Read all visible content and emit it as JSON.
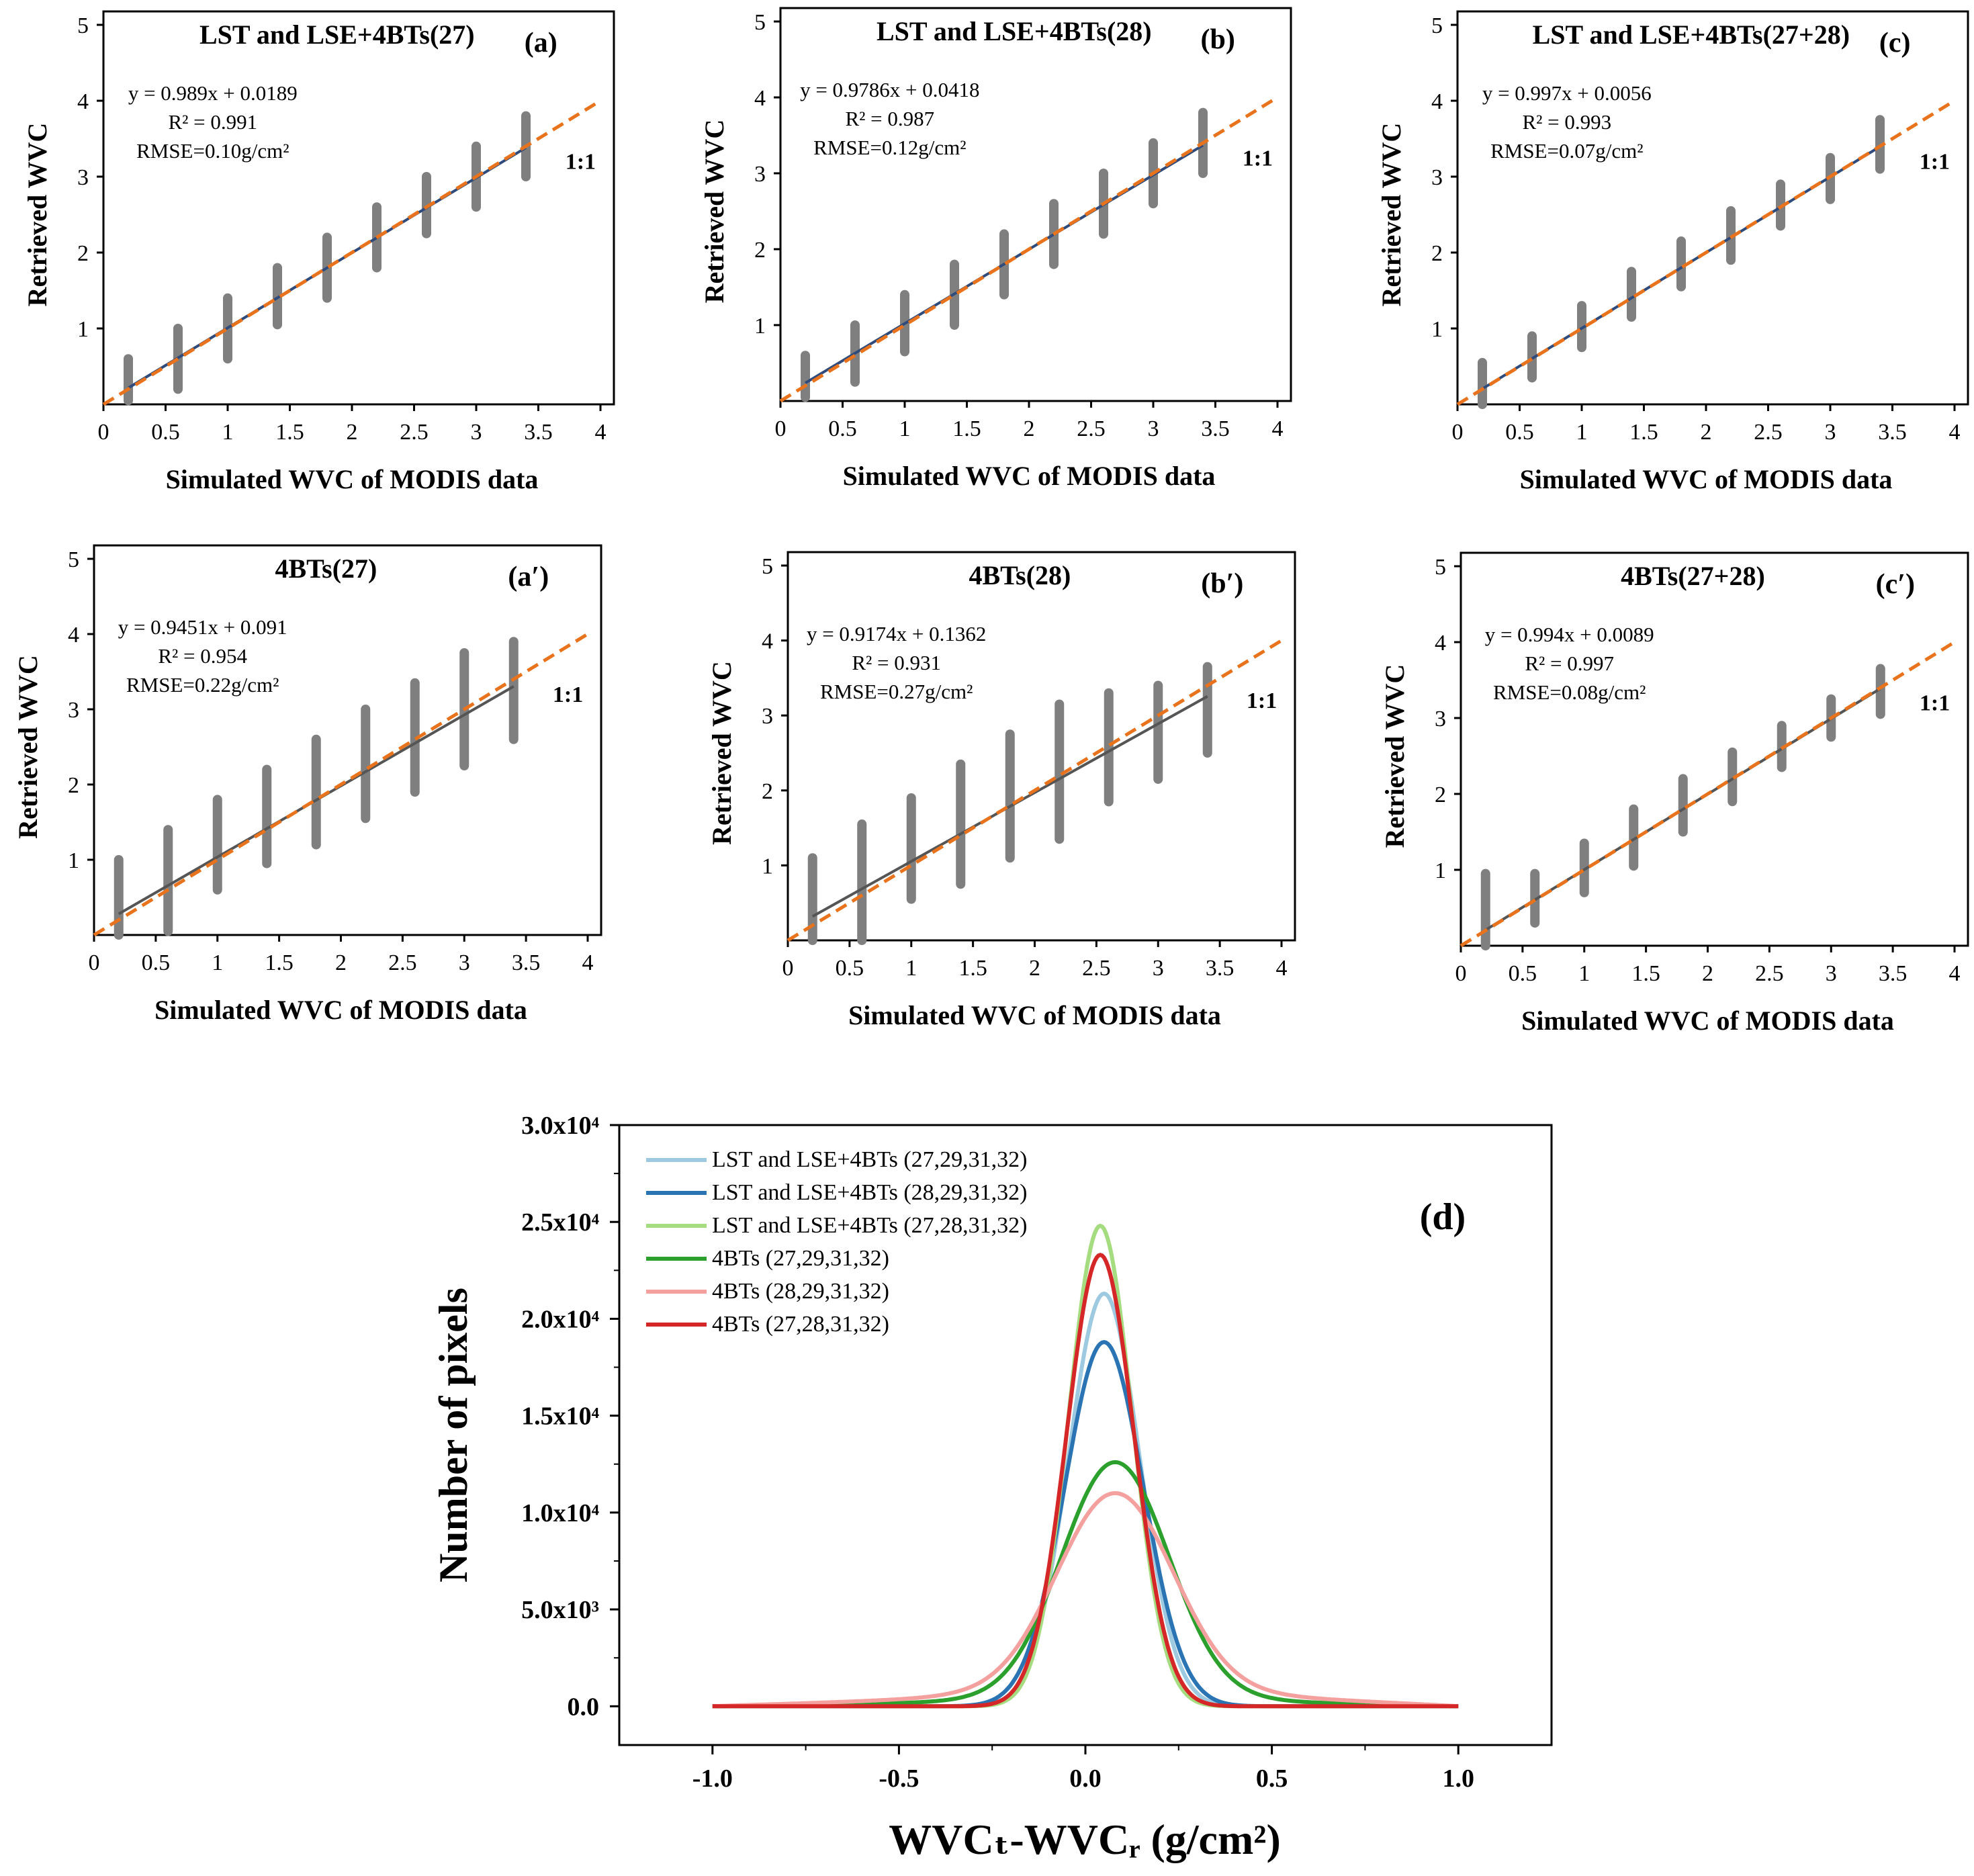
{
  "chart_data": [
    {
      "type": "scatter",
      "panel_label": "(a)",
      "title": "LST and LSE+4BTs(27)",
      "xlabel": "Simulated WVC  of MODIS data",
      "ylabel": "Retrieved  WVC",
      "xlim": [
        0,
        4
      ],
      "ylim": [
        0,
        5
      ],
      "x_ticks": [
        "0",
        "0.5",
        "1",
        "1.5",
        "2",
        "2.5",
        "3",
        "3.5",
        "4"
      ],
      "y_ticks": [
        "1",
        "2",
        "3",
        "4",
        "5"
      ],
      "equation": "y = 0.989x + 0.0189",
      "r2": "R² = 0.991",
      "rmse": "RMSE=0.10g/cm²",
      "one_to_one_label": "1:1",
      "fit": {
        "slope": 0.989,
        "intercept": 0.0189,
        "x_range": [
          0.2,
          3.4
        ]
      },
      "scatter_bars": [
        {
          "x": 0.2,
          "ymin": 0.05,
          "ymax": 0.6
        },
        {
          "x": 0.6,
          "ymin": 0.2,
          "ymax": 1.0
        },
        {
          "x": 1.0,
          "ymin": 0.6,
          "ymax": 1.4
        },
        {
          "x": 1.4,
          "ymin": 1.05,
          "ymax": 1.8
        },
        {
          "x": 1.8,
          "ymin": 1.4,
          "ymax": 2.2
        },
        {
          "x": 2.2,
          "ymin": 1.8,
          "ymax": 2.6
        },
        {
          "x": 2.6,
          "ymin": 2.25,
          "ymax": 3.0
        },
        {
          "x": 3.0,
          "ymin": 2.6,
          "ymax": 3.4
        },
        {
          "x": 3.4,
          "ymin": 3.0,
          "ymax": 3.8
        }
      ]
    },
    {
      "type": "scatter",
      "panel_label": "(b)",
      "title": "LST and LSE+4BTs(28)",
      "xlabel": "Simulated WVC  of MODIS data",
      "ylabel": "Retrieved  WVC",
      "xlim": [
        0,
        4
      ],
      "ylim": [
        0,
        5
      ],
      "x_ticks": [
        "0",
        "0.5",
        "1",
        "1.5",
        "2",
        "2.5",
        "3",
        "3.5",
        "4"
      ],
      "y_ticks": [
        "1",
        "2",
        "3",
        "4",
        "5"
      ],
      "equation": "y = 0.9786x + 0.0418",
      "r2": "R² = 0.987",
      "rmse": "RMSE=0.12g/cm²",
      "one_to_one_label": "1:1",
      "fit": {
        "slope": 0.9786,
        "intercept": 0.0418,
        "x_range": [
          0.2,
          3.4
        ]
      },
      "scatter_bars": [
        {
          "x": 0.2,
          "ymin": 0.05,
          "ymax": 0.6
        },
        {
          "x": 0.6,
          "ymin": 0.25,
          "ymax": 1.0
        },
        {
          "x": 1.0,
          "ymin": 0.65,
          "ymax": 1.4
        },
        {
          "x": 1.4,
          "ymin": 1.0,
          "ymax": 1.8
        },
        {
          "x": 1.8,
          "ymin": 1.4,
          "ymax": 2.2
        },
        {
          "x": 2.2,
          "ymin": 1.8,
          "ymax": 2.6
        },
        {
          "x": 2.6,
          "ymin": 2.2,
          "ymax": 3.0
        },
        {
          "x": 3.0,
          "ymin": 2.6,
          "ymax": 3.4
        },
        {
          "x": 3.4,
          "ymin": 3.0,
          "ymax": 3.8
        }
      ]
    },
    {
      "type": "scatter",
      "panel_label": "(c)",
      "title": "LST and LSE+4BTs(27+28)",
      "xlabel": "Simulated WVC  of MODIS data",
      "ylabel": "Retrieved  WVC",
      "xlim": [
        0,
        4
      ],
      "ylim": [
        0,
        5
      ],
      "x_ticks": [
        "0",
        "0.5",
        "1",
        "1.5",
        "2",
        "2.5",
        "3",
        "3.5",
        "4"
      ],
      "y_ticks": [
        "1",
        "2",
        "3",
        "4",
        "5"
      ],
      "equation": "y = 0.997x + 0.0056",
      "r2": "R² = 0.993",
      "rmse": "RMSE=0.07g/cm²",
      "one_to_one_label": "1:1",
      "fit": {
        "slope": 0.997,
        "intercept": 0.0056,
        "x_range": [
          0.2,
          3.4
        ]
      },
      "scatter_bars": [
        {
          "x": 0.2,
          "ymin": 0.0,
          "ymax": 0.55
        },
        {
          "x": 0.6,
          "ymin": 0.35,
          "ymax": 0.9
        },
        {
          "x": 1.0,
          "ymin": 0.75,
          "ymax": 1.3
        },
        {
          "x": 1.4,
          "ymin": 1.15,
          "ymax": 1.75
        },
        {
          "x": 1.8,
          "ymin": 1.55,
          "ymax": 2.15
        },
        {
          "x": 2.2,
          "ymin": 1.9,
          "ymax": 2.55
        },
        {
          "x": 2.6,
          "ymin": 2.35,
          "ymax": 2.9
        },
        {
          "x": 3.0,
          "ymin": 2.7,
          "ymax": 3.25
        },
        {
          "x": 3.4,
          "ymin": 3.1,
          "ymax": 3.75
        }
      ]
    },
    {
      "type": "scatter",
      "panel_label": "(a′)",
      "title": "4BTs(27)",
      "xlabel": "Simulated WVC  of MODIS data",
      "ylabel": "Retrieved  WVC",
      "xlim": [
        0,
        4
      ],
      "ylim": [
        0,
        5
      ],
      "x_ticks": [
        "0",
        "0.5",
        "1",
        "1.5",
        "2",
        "2.5",
        "3",
        "3.5",
        "4"
      ],
      "y_ticks": [
        "1",
        "2",
        "3",
        "4",
        "5"
      ],
      "equation": "y = 0.9451x + 0.091",
      "r2": "R² = 0.954",
      "rmse": "RMSE=0.22g/cm²",
      "one_to_one_label": "1:1",
      "fit": {
        "slope": 0.9451,
        "intercept": 0.091,
        "x_range": [
          0.2,
          3.4
        ]
      },
      "scatter_bars": [
        {
          "x": 0.2,
          "ymin": 0.0,
          "ymax": 1.0
        },
        {
          "x": 0.6,
          "ymin": 0.05,
          "ymax": 1.4
        },
        {
          "x": 1.0,
          "ymin": 0.6,
          "ymax": 1.8
        },
        {
          "x": 1.4,
          "ymin": 0.95,
          "ymax": 2.2
        },
        {
          "x": 1.8,
          "ymin": 1.2,
          "ymax": 2.6
        },
        {
          "x": 2.2,
          "ymin": 1.55,
          "ymax": 3.0
        },
        {
          "x": 2.6,
          "ymin": 1.9,
          "ymax": 3.35
        },
        {
          "x": 3.0,
          "ymin": 2.25,
          "ymax": 3.75
        },
        {
          "x": 3.4,
          "ymin": 2.6,
          "ymax": 3.9
        }
      ]
    },
    {
      "type": "scatter",
      "panel_label": "(b′)",
      "title": "4BTs(28)",
      "xlabel": "Simulated WVC  of MODIS data",
      "ylabel": "Retrieved  WVC",
      "xlim": [
        0,
        4
      ],
      "ylim": [
        0,
        5
      ],
      "x_ticks": [
        "0",
        "0.5",
        "1",
        "1.5",
        "2",
        "2.5",
        "3",
        "3.5",
        "4"
      ],
      "y_ticks": [
        "1",
        "2",
        "3",
        "4",
        "5"
      ],
      "equation": "y = 0.9174x + 0.1362",
      "r2": "R² = 0.931",
      "rmse": "RMSE=0.27g/cm²",
      "one_to_one_label": "1:1",
      "fit": {
        "slope": 0.9174,
        "intercept": 0.1362,
        "x_range": [
          0.2,
          3.4
        ]
      },
      "scatter_bars": [
        {
          "x": 0.2,
          "ymin": 0.0,
          "ymax": 1.1
        },
        {
          "x": 0.6,
          "ymin": 0.0,
          "ymax": 1.55
        },
        {
          "x": 1.0,
          "ymin": 0.55,
          "ymax": 1.9
        },
        {
          "x": 1.4,
          "ymin": 0.75,
          "ymax": 2.35
        },
        {
          "x": 1.8,
          "ymin": 1.1,
          "ymax": 2.75
        },
        {
          "x": 2.2,
          "ymin": 1.35,
          "ymax": 3.15
        },
        {
          "x": 2.6,
          "ymin": 1.85,
          "ymax": 3.3
        },
        {
          "x": 3.0,
          "ymin": 2.15,
          "ymax": 3.4
        },
        {
          "x": 3.4,
          "ymin": 2.5,
          "ymax": 3.65
        }
      ]
    },
    {
      "type": "scatter",
      "panel_label": "(c′)",
      "title": "4BTs(27+28)",
      "xlabel": "Simulated WVC  of MODIS data",
      "ylabel": "Retrieved  WVC",
      "xlim": [
        0,
        4
      ],
      "ylim": [
        0,
        5
      ],
      "x_ticks": [
        "0",
        "0.5",
        "1",
        "1.5",
        "2",
        "2.5",
        "3",
        "3.5",
        "4"
      ],
      "y_ticks": [
        "1",
        "2",
        "3",
        "4",
        "5"
      ],
      "equation": "y = 0.994x + 0.0089",
      "r2": "R² = 0.997",
      "rmse": "RMSE=0.08g/cm²",
      "one_to_one_label": "1:1",
      "fit": {
        "slope": 0.994,
        "intercept": 0.0089,
        "x_range": [
          0.2,
          3.4
        ]
      },
      "scatter_bars": [
        {
          "x": 0.2,
          "ymin": 0.0,
          "ymax": 0.95
        },
        {
          "x": 0.6,
          "ymin": 0.3,
          "ymax": 0.95
        },
        {
          "x": 1.0,
          "ymin": 0.7,
          "ymax": 1.35
        },
        {
          "x": 1.4,
          "ymin": 1.05,
          "ymax": 1.8
        },
        {
          "x": 1.8,
          "ymin": 1.5,
          "ymax": 2.2
        },
        {
          "x": 2.2,
          "ymin": 1.9,
          "ymax": 2.55
        },
        {
          "x": 2.6,
          "ymin": 2.35,
          "ymax": 2.9
        },
        {
          "x": 3.0,
          "ymin": 2.75,
          "ymax": 3.25
        },
        {
          "x": 3.4,
          "ymin": 3.05,
          "ymax": 3.65
        }
      ]
    },
    {
      "type": "line",
      "panel_label": "(d)",
      "xlabel": "WVCₜ-WVCᵣ (g/cm²)",
      "ylabel": "Number of pixels",
      "xlim": [
        -1.25,
        1.25
      ],
      "ylim": [
        -2000,
        30000
      ],
      "x_ticks": [
        "-1.0",
        "-0.5",
        "0.0",
        "0.5",
        "1.0"
      ],
      "y_ticks": [
        "0.0",
        "5.0x10³",
        "1.0x10⁴",
        "1.5x10⁴",
        "2.0x10⁴",
        "2.5x10⁴",
        "3.0x10⁴"
      ],
      "x_range": [
        -1.0,
        1.0
      ],
      "legend_position": "top-left",
      "series": [
        {
          "name": "LST and LSE+4BTs (27,29,31,32)",
          "color": "#9ecae1",
          "peak": 21300,
          "center": 0.05,
          "width": 0.095,
          "tail_amp": 0,
          "tail_width": 0.3
        },
        {
          "name": "LST and LSE+4BTs (28,29,31,32)",
          "color": "#2b74b4",
          "peak": 18800,
          "center": 0.05,
          "width": 0.105,
          "tail_amp": 0,
          "tail_width": 0.3
        },
        {
          "name": "LST and LSE+4BTs (27,28,31,32)",
          "color": "#a6dc80",
          "peak": 24800,
          "center": 0.04,
          "width": 0.085,
          "tail_amp": 0,
          "tail_width": 0.3
        },
        {
          "name": "4BTs (27,29,31,32)",
          "color": "#2ca02c",
          "peak": 12600,
          "center": 0.08,
          "width": 0.14,
          "tail_amp": 1300,
          "tail_width": 0.28
        },
        {
          "name": "4BTs (28,29,31,32)",
          "color": "#f4a09e",
          "peak": 11000,
          "center": 0.08,
          "width": 0.15,
          "tail_amp": 1900,
          "tail_width": 0.35
        },
        {
          "name": "4BTs (27,28,31,32)",
          "color": "#d62728",
          "peak": 23300,
          "center": 0.04,
          "width": 0.09,
          "tail_amp": 0,
          "tail_width": 0.3
        }
      ]
    }
  ]
}
